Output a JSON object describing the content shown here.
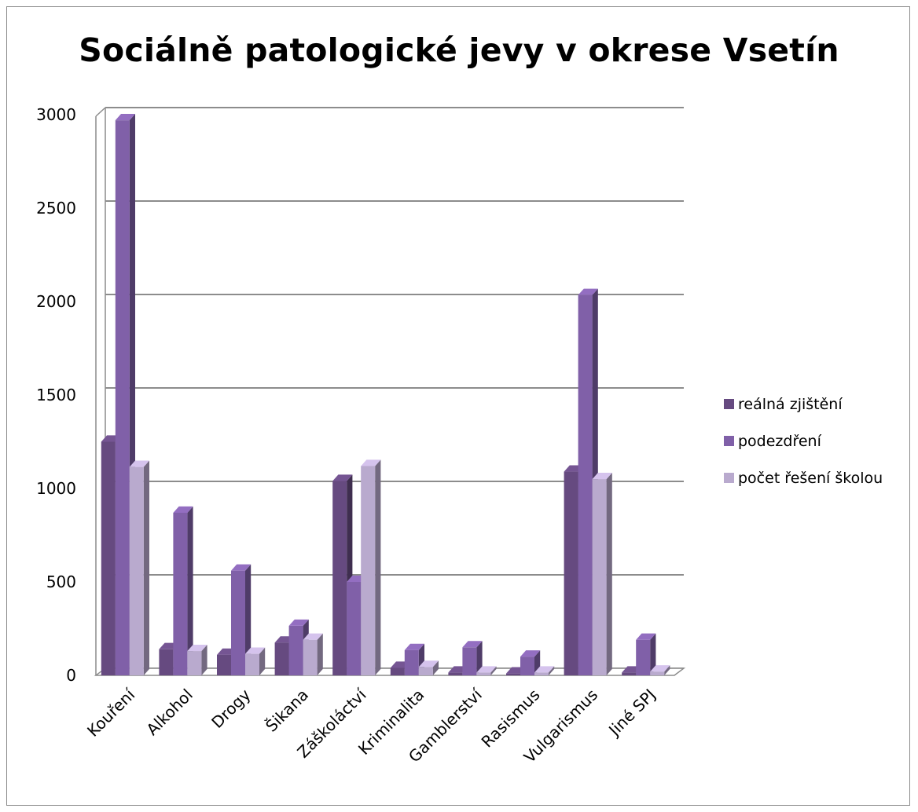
{
  "chart_data": {
    "type": "bar",
    "title": "Sociálně patologické jevy v okrese Vsetín",
    "xlabel": "",
    "ylabel": "",
    "ylim": [
      0,
      3000
    ],
    "yticks": [
      0,
      500,
      1000,
      1500,
      2000,
      2500,
      3000
    ],
    "grid": true,
    "legend_position": "right",
    "style": "3d-clustered-column",
    "categories": [
      "Kouření",
      "Alkohol",
      "Drogy",
      "Šikana",
      "Záškoláctví",
      "Kriminalita",
      "Gamblerství",
      "Rasismus",
      "Vulgarismus",
      "Jiné SPJ"
    ],
    "series": [
      {
        "name": "reálná zjištění",
        "color": "#664a80",
        "values": [
          1250,
          140,
          110,
          175,
          1040,
          40,
          15,
          10,
          1090,
          15
        ]
      },
      {
        "name": "podezdření",
        "color": "#8060a8",
        "values": [
          2970,
          870,
          560,
          265,
          500,
          135,
          150,
          100,
          2035,
          190
        ]
      },
      {
        "name": "počet řešení školou",
        "color": "#b9aace",
        "values": [
          1115,
          130,
          115,
          190,
          1120,
          45,
          15,
          15,
          1050,
          20
        ]
      }
    ]
  }
}
